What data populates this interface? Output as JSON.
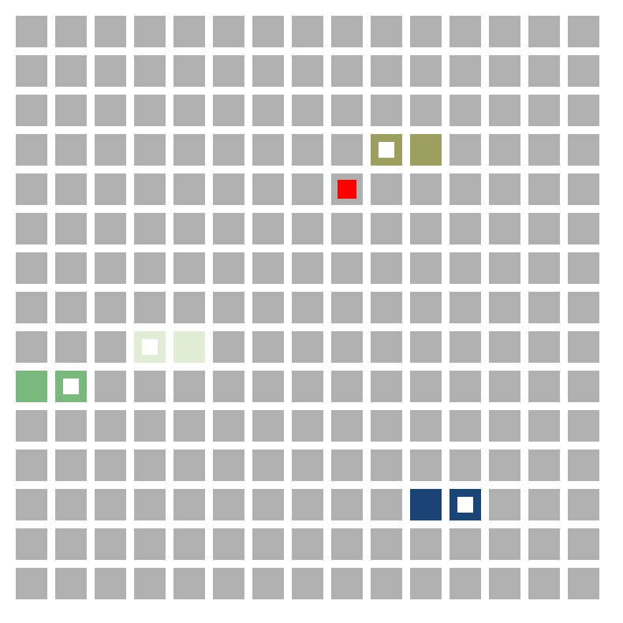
{
  "grid": {
    "rows": 15,
    "cols": 15,
    "empty_color": "#b0b0b0",
    "background": "#ffffff"
  },
  "pieces": [
    {
      "id": "olive",
      "color": "#9c9f5e",
      "cells": [
        {
          "row": 3,
          "col": 9,
          "marker": true
        },
        {
          "row": 3,
          "col": 10,
          "marker": false
        }
      ]
    },
    {
      "id": "pale-green",
      "color": "#e2edd6",
      "cells": [
        {
          "row": 8,
          "col": 3,
          "marker": true
        },
        {
          "row": 8,
          "col": 4,
          "marker": false
        }
      ]
    },
    {
      "id": "green",
      "color": "#7ab97e",
      "cells": [
        {
          "row": 9,
          "col": 0,
          "marker": false
        },
        {
          "row": 9,
          "col": 1,
          "marker": true
        }
      ]
    },
    {
      "id": "navy",
      "color": "#1b4577",
      "cells": [
        {
          "row": 12,
          "col": 10,
          "marker": false
        },
        {
          "row": 12,
          "col": 11,
          "marker": true
        }
      ]
    }
  ],
  "target": {
    "row": 4,
    "col": 8,
    "color": "#ff0000",
    "icon": "target-square-icon"
  }
}
